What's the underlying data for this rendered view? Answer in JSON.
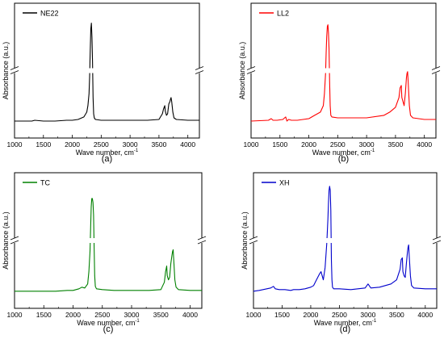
{
  "chart_data": [
    {
      "type": "line",
      "caption": "(a)",
      "xlabel": "Wave number, cm",
      "xlabel_sup": "-1",
      "ylabel": "Absorbance (a.u.)",
      "xlim": [
        1000,
        4200
      ],
      "xticks": [
        1000,
        1500,
        2000,
        2500,
        3000,
        3500,
        4000
      ],
      "axis_break": true,
      "legend_position": "top-left",
      "series": [
        {
          "name": "NE22",
          "color": "#000000",
          "x": [
            1000,
            1300,
            1350,
            1500,
            1700,
            1900,
            2000,
            2100,
            2200,
            2250,
            2270,
            2290,
            2300,
            2310,
            2320,
            2330,
            2340,
            2350,
            2360,
            2370,
            2380,
            2400,
            2500,
            2700,
            3000,
            3300,
            3500,
            3560,
            3580,
            3600,
            3610,
            3630,
            3650,
            3670,
            3690,
            3700,
            3710,
            3720,
            3740,
            3760,
            3800,
            4000,
            4200
          ],
          "y": [
            0.01,
            0.01,
            0.02,
            0.01,
            0.01,
            0.02,
            0.02,
            0.03,
            0.06,
            0.12,
            0.2,
            0.35,
            0.55,
            0.85,
            1.15,
            1.22,
            1.05,
            0.75,
            0.3,
            0.1,
            0.05,
            0.03,
            0.02,
            0.02,
            0.02,
            0.02,
            0.03,
            0.1,
            0.16,
            0.2,
            0.13,
            0.08,
            0.1,
            0.22,
            0.25,
            0.28,
            0.3,
            0.25,
            0.12,
            0.05,
            0.03,
            0.02,
            0.02
          ]
        }
      ]
    },
    {
      "type": "line",
      "caption": "(b)",
      "xlabel": "Wave number, cm",
      "xlabel_sup": "-1",
      "ylabel": "Absorbance (a.u.)",
      "xlim": [
        1000,
        4200
      ],
      "xticks": [
        1000,
        1500,
        2000,
        2500,
        3000,
        3500,
        4000
      ],
      "axis_break": true,
      "legend_position": "top-left",
      "series": [
        {
          "name": "LL2",
          "color": "#ff0000",
          "x": [
            1000,
            1300,
            1350,
            1380,
            1450,
            1550,
            1600,
            1620,
            1650,
            1700,
            1800,
            1900,
            2000,
            2100,
            2150,
            2200,
            2250,
            2270,
            2290,
            2300,
            2310,
            2320,
            2330,
            2340,
            2350,
            2360,
            2370,
            2380,
            2400,
            2500,
            2700,
            3000,
            3300,
            3400,
            3500,
            3560,
            3580,
            3600,
            3610,
            3630,
            3650,
            3670,
            3690,
            3700,
            3710,
            3720,
            3740,
            3760,
            3800,
            4000,
            4200
          ],
          "y": [
            0.01,
            0.02,
            0.04,
            0.02,
            0.02,
            0.03,
            0.06,
            0.01,
            0.03,
            0.02,
            0.02,
            0.03,
            0.04,
            0.08,
            0.1,
            0.12,
            0.2,
            0.35,
            0.6,
            0.85,
            1.05,
            1.18,
            1.2,
            1.1,
            0.9,
            0.5,
            0.2,
            0.08,
            0.06,
            0.05,
            0.05,
            0.05,
            0.08,
            0.12,
            0.18,
            0.3,
            0.42,
            0.45,
            0.3,
            0.25,
            0.2,
            0.35,
            0.55,
            0.6,
            0.62,
            0.5,
            0.2,
            0.08,
            0.05,
            0.03,
            0.03
          ]
        }
      ]
    },
    {
      "type": "line",
      "caption": "(c)",
      "xlabel": "Wave number, cm",
      "xlabel_sup": "-1",
      "ylabel": "Absorbance (a.u.)",
      "xlim": [
        1000,
        4200
      ],
      "xticks": [
        1000,
        1500,
        2000,
        2500,
        3000,
        3500,
        4000
      ],
      "axis_break": true,
      "legend_position": "top-left",
      "series": [
        {
          "name": "TC",
          "color": "#008000",
          "x": [
            1000,
            1300,
            1500,
            1700,
            1900,
            2000,
            2100,
            2150,
            2200,
            2250,
            2270,
            2290,
            2300,
            2310,
            2320,
            2330,
            2340,
            2350,
            2360,
            2370,
            2380,
            2400,
            2500,
            2700,
            3000,
            3300,
            3500,
            3560,
            3580,
            3600,
            3610,
            3630,
            3650,
            3670,
            3690,
            3700,
            3710,
            3720,
            3740,
            3760,
            3800,
            4000,
            4200
          ],
          "y": [
            0.01,
            0.01,
            0.01,
            0.01,
            0.02,
            0.02,
            0.04,
            0.06,
            0.05,
            0.1,
            0.25,
            0.5,
            0.8,
            1.05,
            1.15,
            1.15,
            1.1,
            0.95,
            0.55,
            0.2,
            0.07,
            0.04,
            0.03,
            0.02,
            0.02,
            0.02,
            0.03,
            0.12,
            0.25,
            0.32,
            0.2,
            0.15,
            0.18,
            0.35,
            0.45,
            0.5,
            0.52,
            0.4,
            0.15,
            0.06,
            0.03,
            0.02,
            0.02
          ]
        }
      ]
    },
    {
      "type": "line",
      "caption": "(d)",
      "xlabel": "Wave number, cm",
      "xlabel_sup": "-1",
      "ylabel": "Absorbance (a.u.)",
      "xlim": [
        1000,
        4200
      ],
      "xticks": [
        1000,
        1500,
        2000,
        2500,
        3000,
        3500,
        4000
      ],
      "axis_break": true,
      "legend_position": "top-left",
      "series": [
        {
          "name": "XH",
          "color": "#0000cc",
          "x": [
            1000,
            1100,
            1300,
            1350,
            1380,
            1450,
            1550,
            1650,
            1700,
            1800,
            1900,
            2000,
            2050,
            2100,
            2150,
            2180,
            2200,
            2220,
            2250,
            2280,
            2300,
            2310,
            2320,
            2330,
            2340,
            2350,
            2360,
            2370,
            2380,
            2400,
            2500,
            2700,
            2950,
            3000,
            3050,
            3200,
            3300,
            3400,
            3500,
            3560,
            3580,
            3600,
            3610,
            3630,
            3650,
            3670,
            3690,
            3700,
            3710,
            3720,
            3740,
            3760,
            3800,
            4000,
            4200
          ],
          "y": [
            0.01,
            0.02,
            0.05,
            0.07,
            0.04,
            0.03,
            0.03,
            0.02,
            0.03,
            0.03,
            0.04,
            0.06,
            0.08,
            0.15,
            0.22,
            0.25,
            0.2,
            0.15,
            0.3,
            0.6,
            0.9,
            1.1,
            1.25,
            1.3,
            1.25,
            1.0,
            0.4,
            0.15,
            0.06,
            0.04,
            0.04,
            0.03,
            0.05,
            0.1,
            0.05,
            0.06,
            0.08,
            0.1,
            0.15,
            0.28,
            0.4,
            0.42,
            0.25,
            0.2,
            0.18,
            0.35,
            0.5,
            0.55,
            0.58,
            0.45,
            0.2,
            0.08,
            0.05,
            0.04,
            0.04
          ]
        }
      ]
    }
  ]
}
